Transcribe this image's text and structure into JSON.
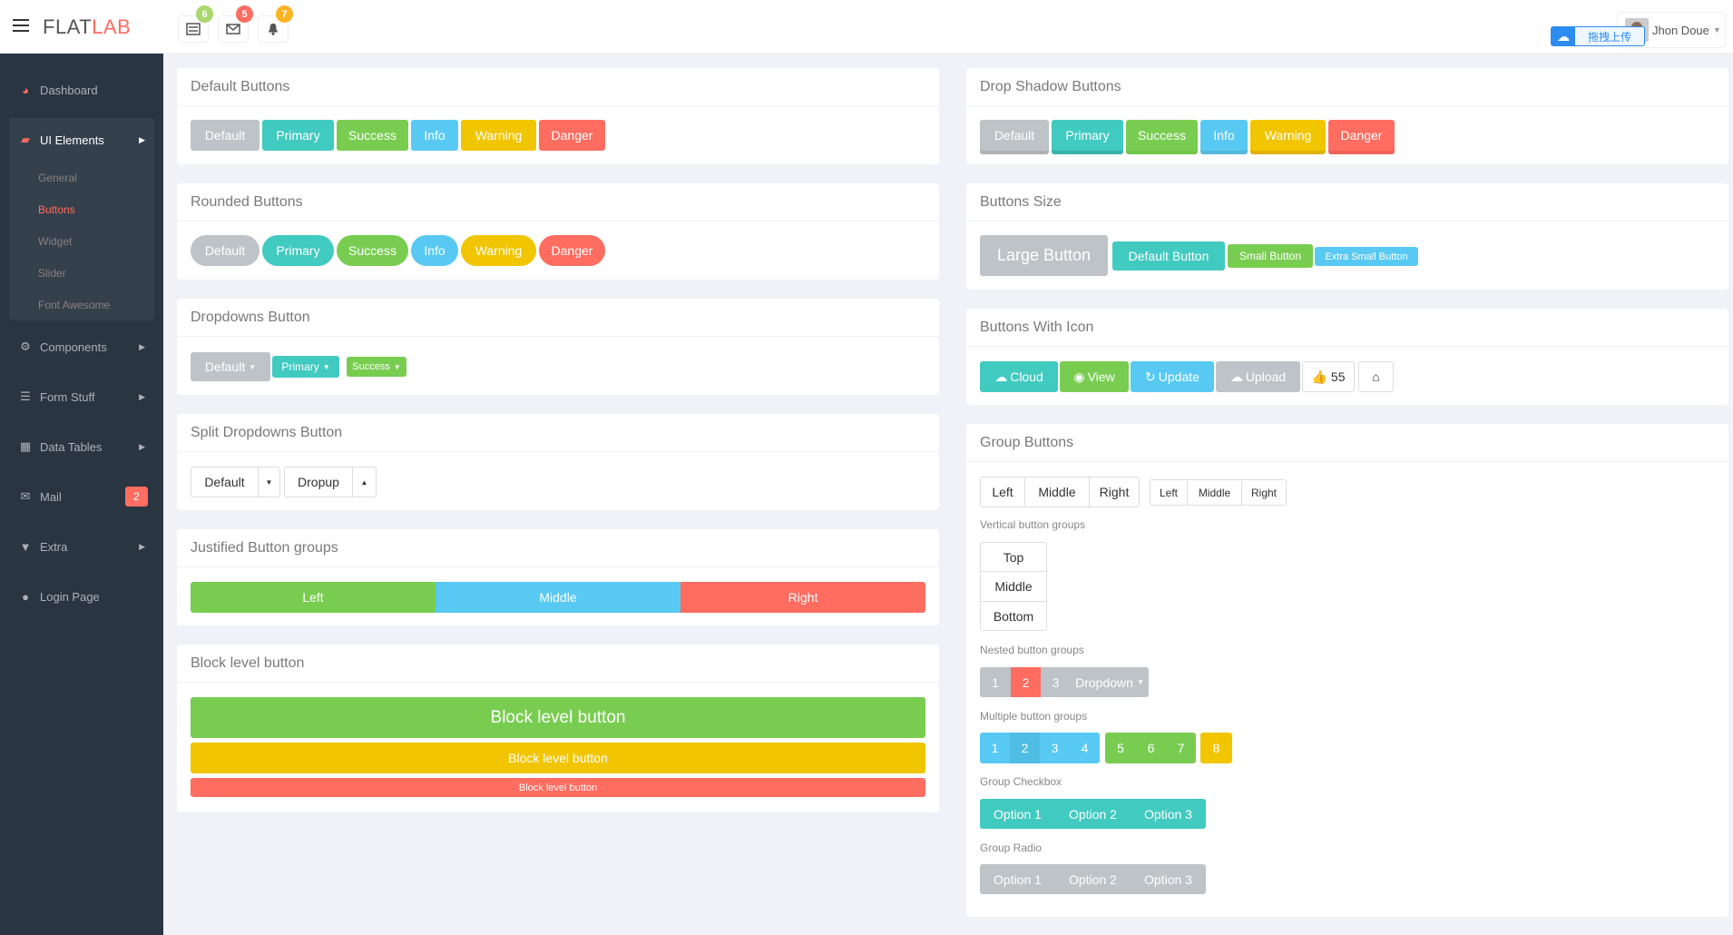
{
  "header": {
    "logo_main": "FLAT",
    "logo_accent": "LAB",
    "notifications": [
      {
        "icon": "tasks-icon",
        "count": "6",
        "color": "#a9d86e"
      },
      {
        "icon": "envelope-icon",
        "count": "5",
        "color": "#ff6c60"
      },
      {
        "icon": "bell-icon",
        "count": "7",
        "color": "#fcb322"
      }
    ],
    "upload_label": "拖拽上传",
    "user_name": "Jhon Doue"
  },
  "sidebar": {
    "items": [
      {
        "label": "Dashboard",
        "icon": "dashboard-icon"
      },
      {
        "label": "UI Elements",
        "icon": "book-icon"
      },
      {
        "label": "Components",
        "icon": "cogs-icon"
      },
      {
        "label": "Form Stuff",
        "icon": "tasks-icon"
      },
      {
        "label": "Data Tables",
        "icon": "th-icon"
      },
      {
        "label": "Mail",
        "icon": "envelope-icon"
      },
      {
        "label": "Extra",
        "icon": "glass-icon"
      },
      {
        "label": "Login Page",
        "icon": "user-icon"
      }
    ],
    "sub_items": [
      "General",
      "Buttons",
      "Widget",
      "Slider",
      "Font Awesome"
    ],
    "mail_count": "2"
  },
  "panels": {
    "default_buttons": {
      "title": "Default Buttons",
      "labels": [
        "Default",
        "Primary",
        "Success",
        "Info",
        "Warning",
        "Danger"
      ]
    },
    "drop_shadow": {
      "title": "Drop Shadow Buttons",
      "labels": [
        "Default",
        "Primary",
        "Success",
        "Info",
        "Warning",
        "Danger"
      ]
    },
    "rounded": {
      "title": "Rounded Buttons",
      "labels": [
        "Default",
        "Primary",
        "Success",
        "Info",
        "Warning",
        "Danger"
      ]
    },
    "sizes": {
      "title": "Buttons Size",
      "labels": [
        "Large Button",
        "Default Button",
        "Small Button",
        "Extra Small Button"
      ]
    },
    "dropdowns": {
      "title": "Dropdowns Button",
      "labels": [
        "Default",
        "Primary",
        "Success"
      ]
    },
    "with_icon": {
      "title": "Buttons With Icon",
      "labels": [
        "Cloud",
        "View",
        "Update",
        "Upload",
        "55"
      ]
    },
    "split": {
      "title": "Split Dropdowns Button",
      "labels": [
        "Default",
        "Dropup"
      ]
    },
    "justified": {
      "title": "Justified Button groups",
      "labels": [
        "Left",
        "Middle",
        "Right"
      ]
    },
    "block": {
      "title": "Block level button",
      "labels": [
        "Block level button",
        "Block level button",
        "Block level button"
      ]
    },
    "group": {
      "title": "Group Buttons",
      "row1": [
        "Left",
        "Middle",
        "Right"
      ],
      "row1_small": [
        "Left",
        "Middle",
        "Right"
      ],
      "vertical_label": "Vertical button groups",
      "vertical": [
        "Top",
        "Middle",
        "Bottom"
      ],
      "nested_label": "Nested button groups",
      "nested": [
        "1",
        "2",
        "3",
        "Dropdown"
      ],
      "multiple_label": "Multiple button groups",
      "multiple": [
        "1",
        "2",
        "3",
        "4",
        "5",
        "6",
        "7",
        "8"
      ],
      "checkbox_label": "Group Checkbox",
      "checkbox": [
        "Option 1",
        "Option 2",
        "Option 3"
      ],
      "radio_label": "Group Radio",
      "radio": [
        "Option 1",
        "Option 2",
        "Option 3"
      ]
    }
  }
}
